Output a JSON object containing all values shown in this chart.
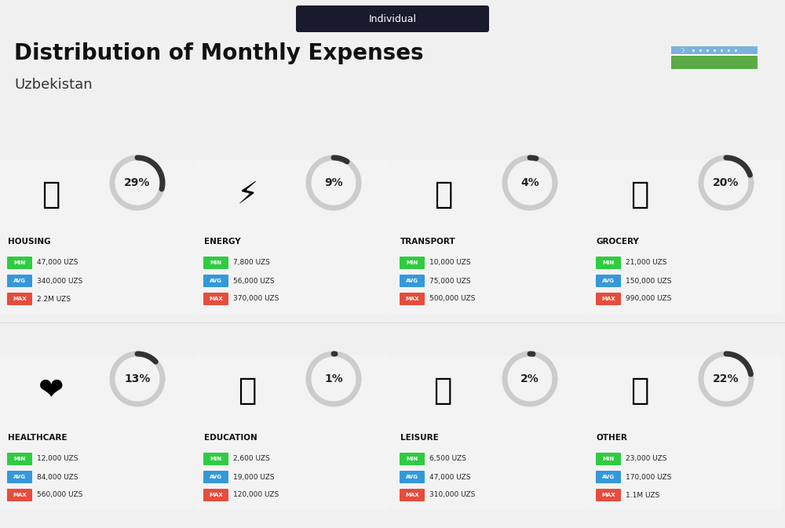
{
  "title": "Distribution of Monthly Expenses",
  "subtitle": "Individual",
  "country": "Uzbekistan",
  "bg_color": "#f0f0f0",
  "categories": [
    {
      "name": "HOUSING",
      "pct": 29,
      "min": "47,000 UZS",
      "avg": "340,000 UZS",
      "max": "2.2M UZS",
      "row": 0,
      "col": 0
    },
    {
      "name": "ENERGY",
      "pct": 9,
      "min": "7,800 UZS",
      "avg": "56,000 UZS",
      "max": "370,000 UZS",
      "row": 0,
      "col": 1
    },
    {
      "name": "TRANSPORT",
      "pct": 4,
      "min": "10,000 UZS",
      "avg": "75,000 UZS",
      "max": "500,000 UZS",
      "row": 0,
      "col": 2
    },
    {
      "name": "GROCERY",
      "pct": 20,
      "min": "21,000 UZS",
      "avg": "150,000 UZS",
      "max": "990,000 UZS",
      "row": 0,
      "col": 3
    },
    {
      "name": "HEALTHCARE",
      "pct": 13,
      "min": "12,000 UZS",
      "avg": "84,000 UZS",
      "max": "560,000 UZS",
      "row": 1,
      "col": 0
    },
    {
      "name": "EDUCATION",
      "pct": 1,
      "min": "2,600 UZS",
      "avg": "19,000 UZS",
      "max": "120,000 UZS",
      "row": 1,
      "col": 1
    },
    {
      "name": "LEISURE",
      "pct": 2,
      "min": "6,500 UZS",
      "avg": "47,000 UZS",
      "max": "310,000 UZS",
      "row": 1,
      "col": 2
    },
    {
      "name": "OTHER",
      "pct": 22,
      "min": "23,000 UZS",
      "avg": "170,000 UZS",
      "max": "1.1M UZS",
      "row": 1,
      "col": 3
    }
  ],
  "min_color": "#2ecc40",
  "avg_color": "#3498db",
  "max_color": "#e74c3c",
  "label_color": "#ffffff",
  "arc_color": "#333333",
  "arc_bg_color": "#cccccc",
  "card_bg": "#ffffff",
  "flag_top_color": "#7bb2e0",
  "flag_mid_color": "#e8d0d0",
  "flag_bot_color": "#5aab45"
}
